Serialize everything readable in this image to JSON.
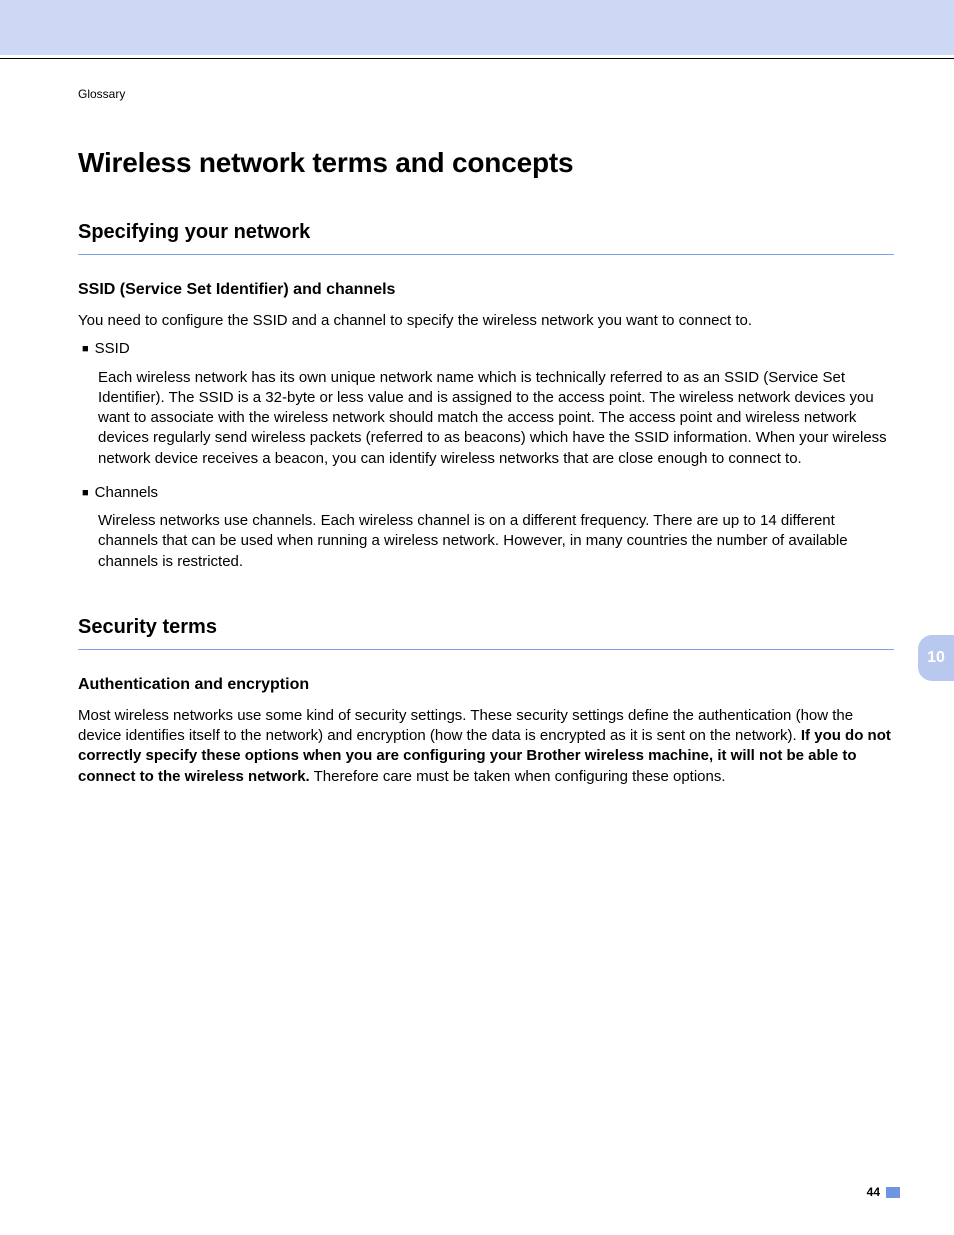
{
  "colors": {
    "top_band": "#cdd8f4",
    "rule_line": "#000000",
    "section_underline": "#7aa0e8",
    "side_tab_bg": "#b8c8ee",
    "side_tab_text": "#ffffff",
    "footer_mark": "#6f95e0",
    "text": "#000000",
    "background": "#ffffff"
  },
  "breadcrumb": "Glossary",
  "main_title": "Wireless network terms and concepts",
  "section1": {
    "title": "Specifying your network",
    "sub1": {
      "title": "SSID (Service Set Identifier) and channels",
      "intro": "You need to configure the SSID and a channel to specify the wireless network you want to connect to.",
      "bullets": [
        {
          "label": "SSID",
          "body": "Each wireless network has its own unique network name which is technically referred to as an SSID (Service Set Identifier). The SSID is a 32-byte or less value and is assigned to the access point. The wireless network devices you want to associate with the wireless network should match the access point. The access point and wireless network devices regularly send wireless packets (referred to as beacons) which have the SSID information. When your wireless network device receives a beacon, you can identify wireless networks that are close enough to connect to."
        },
        {
          "label": "Channels",
          "body": "Wireless networks use channels. Each wireless channel is on a different frequency. There are up to 14 different channels that can be used when running a wireless network. However, in many countries the number of available channels is restricted."
        }
      ]
    }
  },
  "section2": {
    "title": "Security terms",
    "sub1": {
      "title": "Authentication and encryption",
      "para_prefix": "Most wireless networks use some kind of security settings. These security settings define the authentication (how the device identifies itself to the network) and encryption (how the data is encrypted as it is sent on the network). ",
      "para_bold": "If you do not correctly specify these options when you are configuring your Brother wireless machine, it will not be able to connect to the wireless network.",
      "para_suffix": " Therefore care must be taken when configuring these options."
    }
  },
  "side_tab": "10",
  "page_number": "44",
  "bullet_glyph": "■"
}
